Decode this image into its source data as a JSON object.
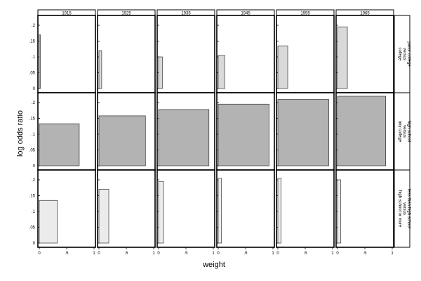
{
  "chart_data": {
    "type": "bar",
    "xlabel": "weight",
    "ylabel": "log odds ratio",
    "columns": [
      "1915",
      "1925",
      "1935",
      "1945",
      "1955",
      "1965"
    ],
    "rows": [
      {
        "label_lines": [
          "junior college",
          "versus",
          "college"
        ],
        "fill": "#d9d9d9",
        "bars": [
          {
            "weight": 0.02,
            "value": 0.17
          },
          {
            "weight": 0.05,
            "value": 0.12
          },
          {
            "weight": 0.07,
            "value": 0.1
          },
          {
            "weight": 0.12,
            "value": 0.105
          },
          {
            "weight": 0.18,
            "value": 0.135
          },
          {
            "weight": 0.18,
            "value": 0.195
          }
        ]
      },
      {
        "label_lines": [
          "high school",
          "versus",
          "any college"
        ],
        "fill": "#b3b3b3",
        "bars": [
          {
            "weight": 0.73,
            "value": 0.133
          },
          {
            "weight": 0.85,
            "value": 0.158
          },
          {
            "weight": 0.92,
            "value": 0.178
          },
          {
            "weight": 0.93,
            "value": 0.195
          },
          {
            "weight": 0.93,
            "value": 0.21
          },
          {
            "weight": 0.88,
            "value": 0.22
          }
        ]
      },
      {
        "label_lines": [
          "less than high school",
          "versus",
          "high school or more"
        ],
        "fill": "#ebebeb",
        "bars": [
          {
            "weight": 0.33,
            "value": 0.135
          },
          {
            "weight": 0.18,
            "value": 0.17
          },
          {
            "weight": 0.09,
            "value": 0.195
          },
          {
            "weight": 0.06,
            "value": 0.205
          },
          {
            "weight": 0.06,
            "value": 0.205
          },
          {
            "weight": 0.06,
            "value": 0.2
          }
        ]
      }
    ],
    "ylim": [
      0,
      0.2
    ],
    "yticks": [
      0,
      0.05,
      0.1,
      0.15,
      0.2
    ],
    "ytick_labels": [
      "0",
      ".05",
      ".1",
      ".15",
      ".2"
    ],
    "xlim": [
      0,
      1
    ],
    "xticks": [
      0,
      0.5,
      1
    ],
    "xtick_labels": [
      "0",
      ".5",
      "1"
    ],
    "grid": false,
    "legend": "none"
  }
}
